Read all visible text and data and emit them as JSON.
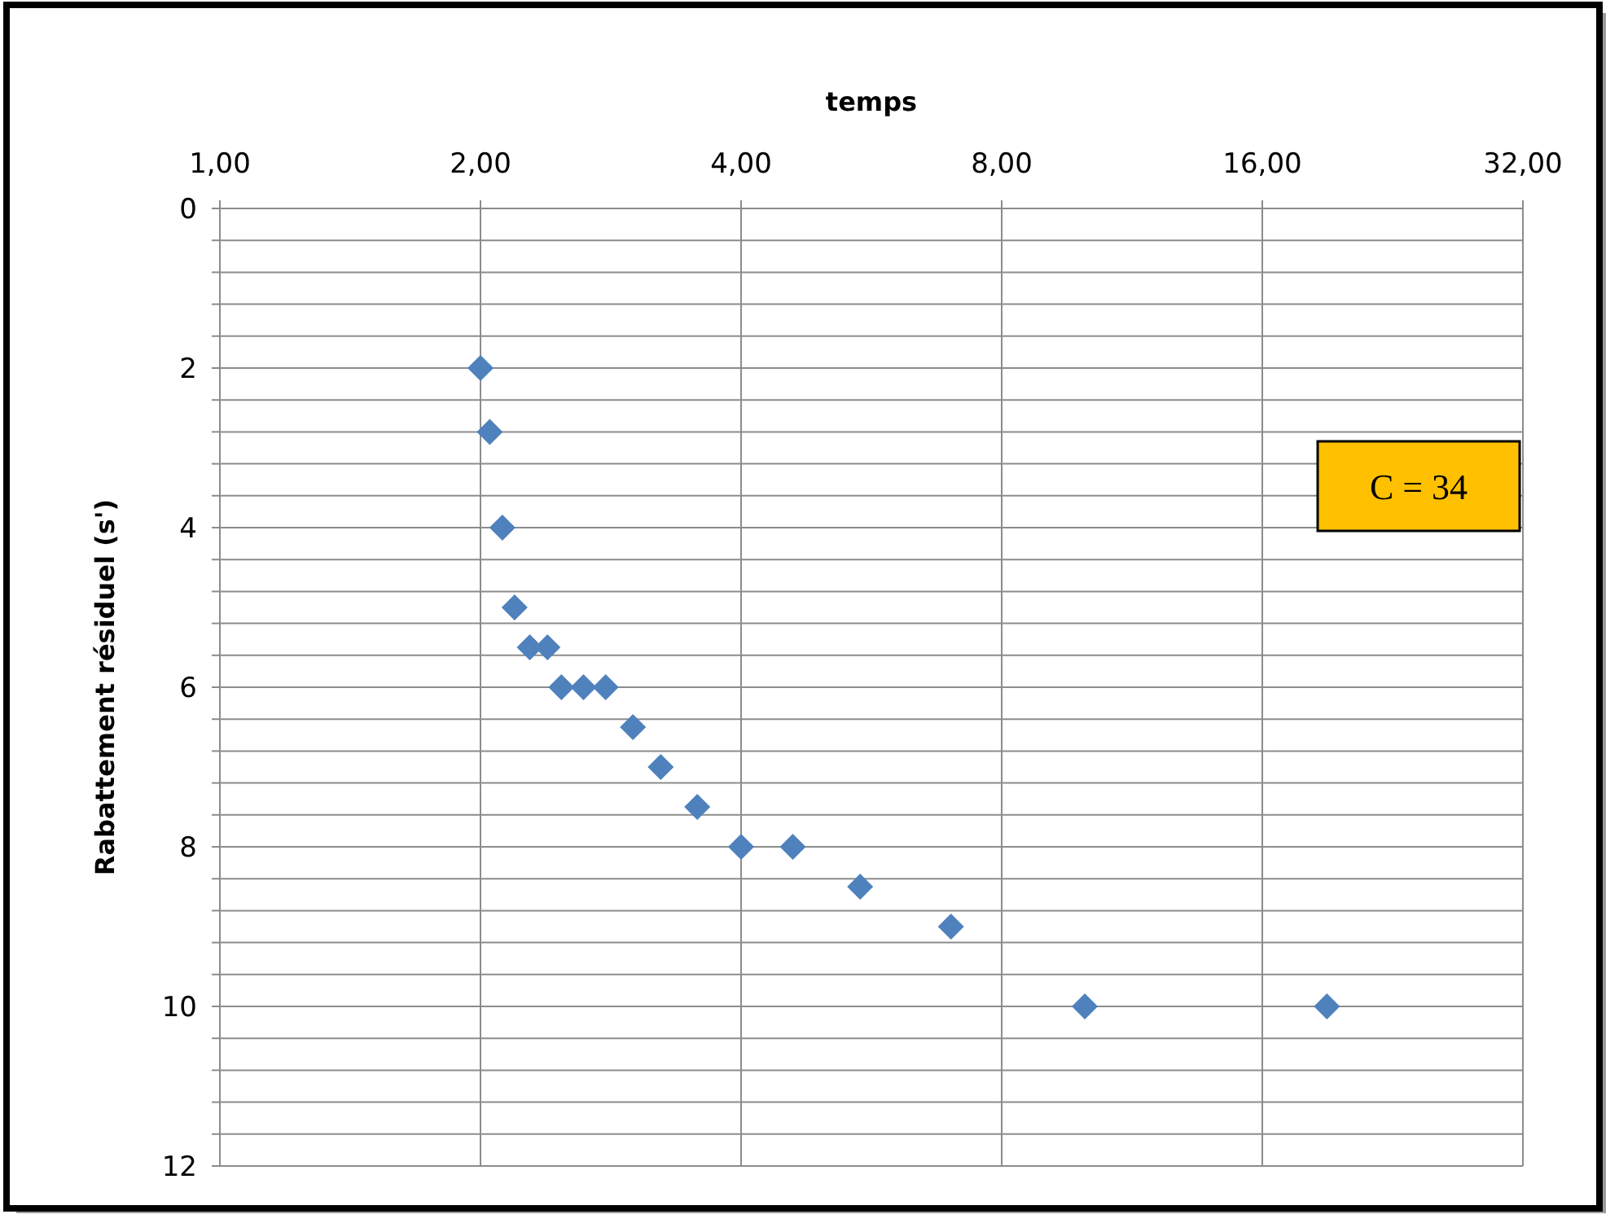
{
  "chart_data": {
    "type": "scatter",
    "xlabel": "temps",
    "ylabel": "Rabattement résiduel (s')",
    "x": [
      2.0,
      2.05,
      2.12,
      2.19,
      2.28,
      2.39,
      2.48,
      2.63,
      2.79,
      3.0,
      3.23,
      3.56,
      4.0,
      4.59,
      5.49,
      6.99,
      9.98,
      19.0
    ],
    "values": [
      2,
      2.8,
      4,
      5,
      5.5,
      5.5,
      6,
      6,
      6,
      6.5,
      7,
      7.5,
      8,
      8,
      8.5,
      9,
      10,
      10
    ],
    "color": "#4f81bd",
    "marker": "diamond",
    "log": "x",
    "xlim": [
      1,
      32
    ],
    "xticks": [
      {
        "value": 1,
        "label": "1,00"
      },
      {
        "value": 2,
        "label": "2,00"
      },
      {
        "value": 4,
        "label": "4,00"
      },
      {
        "value": 8,
        "label": "8,00"
      },
      {
        "value": 16,
        "label": "16,00"
      },
      {
        "value": 32,
        "label": "32,00"
      }
    ],
    "ylim": [
      12,
      0
    ],
    "yticks": [
      0,
      {
        "value": 0.4,
        "label": null
      },
      {
        "value": 0.8,
        "label": null
      },
      {
        "value": 1.2,
        "label": null
      },
      {
        "value": 1.6,
        "label": null
      },
      2,
      {
        "value": 2.4,
        "label": null
      },
      {
        "value": 2.8,
        "label": null
      },
      {
        "value": 3.2,
        "label": null
      },
      {
        "value": 3.6,
        "label": null
      },
      4,
      {
        "value": 4.4,
        "label": null
      },
      {
        "value": 4.8,
        "label": null
      },
      {
        "value": 5.2,
        "label": null
      },
      {
        "value": 5.6,
        "label": null
      },
      6,
      {
        "value": 6.4,
        "label": null
      },
      {
        "value": 6.8,
        "label": null
      },
      {
        "value": 7.2,
        "label": null
      },
      {
        "value": 7.6,
        "label": null
      },
      8,
      {
        "value": 8.4,
        "label": null
      },
      {
        "value": 8.8,
        "label": null
      },
      {
        "value": 9.2,
        "label": null
      },
      {
        "value": 9.6,
        "label": null
      },
      10,
      {
        "value": 10.4,
        "label": null
      },
      {
        "value": 10.8,
        "label": null
      },
      {
        "value": 11.2,
        "label": null
      },
      {
        "value": 11.6,
        "label": null
      },
      12
    ],
    "grid": true,
    "annotations": [
      "C = 34"
    ]
  }
}
